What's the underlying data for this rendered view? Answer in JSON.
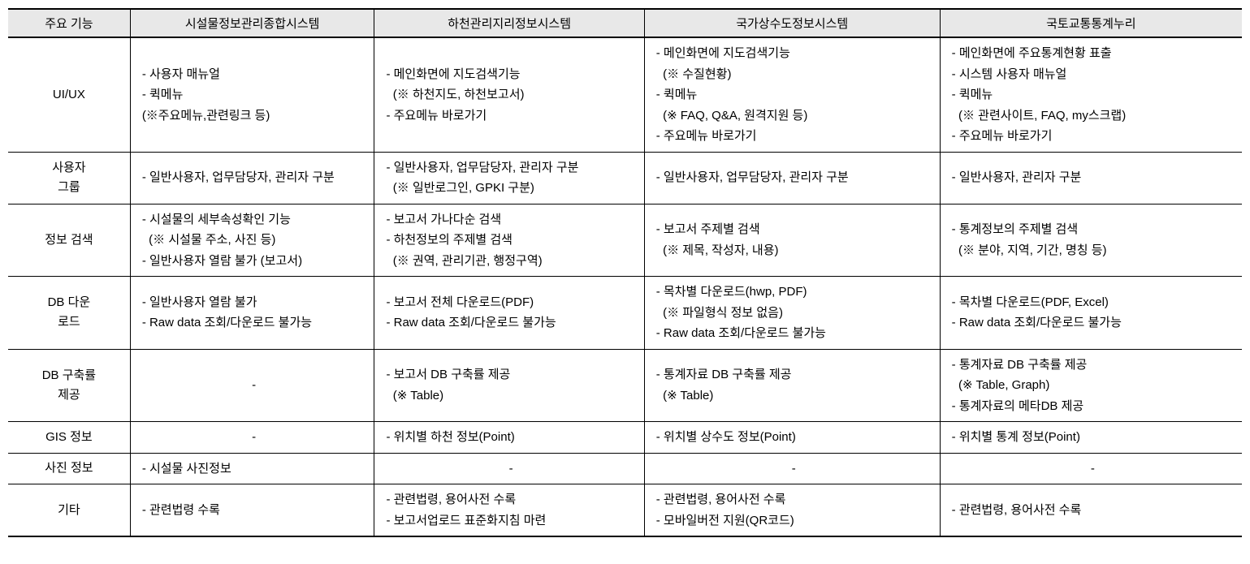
{
  "colors": {
    "header_bg": "#e8e8e8",
    "border": "#000000",
    "text": "#000000",
    "background": "#ffffff"
  },
  "typography": {
    "font_family": "Malgun Gothic",
    "font_size_pt": 11,
    "line_height": 1.7
  },
  "table": {
    "type": "table",
    "columns": [
      {
        "label": "주요 기능",
        "width_pct": 9.5,
        "align": "center"
      },
      {
        "label": "시설물정보관리종합시스템",
        "width_pct": 19,
        "align": "center"
      },
      {
        "label": "하천관리지리정보시스템",
        "width_pct": 21,
        "align": "center"
      },
      {
        "label": "국가상수도정보시스템",
        "width_pct": 23,
        "align": "center"
      },
      {
        "label": "국토교통통계누리",
        "width_pct": 23.5,
        "align": "center"
      }
    ],
    "rows": [
      {
        "head": "UI/UX",
        "cells": [
          {
            "lines": [
              "- 사용자 매뉴얼",
              "- 퀵메뉴",
              "(※주요메뉴,관련링크 등)"
            ]
          },
          {
            "lines": [
              "- 메인화면에 지도검색기능",
              "  (※ 하천지도, 하천보고서)",
              "- 주요메뉴 바로가기"
            ]
          },
          {
            "lines": [
              "- 메인화면에 지도검색기능",
              "  (※ 수질현황)",
              "- 퀵메뉴",
              "  (※ FAQ, Q&A, 원격지원 등)",
              "- 주요메뉴 바로가기"
            ]
          },
          {
            "lines": [
              "- 메인화면에 주요통계현황 표출",
              "- 시스템 사용자 매뉴얼",
              "- 퀵메뉴",
              "  (※ 관련사이트, FAQ, my스크랩)",
              "- 주요메뉴 바로가기"
            ]
          }
        ]
      },
      {
        "head": "사용자\n그룹",
        "cells": [
          {
            "lines": [
              "- 일반사용자, 업무담당자, 관리자 구분"
            ]
          },
          {
            "lines": [
              "- 일반사용자, 업무담당자, 관리자 구분",
              "  (※ 일반로그인, GPKI 구분)"
            ]
          },
          {
            "lines": [
              "- 일반사용자, 업무담당자, 관리자 구분"
            ]
          },
          {
            "lines": [
              "- 일반사용자, 관리자 구분"
            ]
          }
        ]
      },
      {
        "head": "정보 검색",
        "cells": [
          {
            "lines": [
              "- 시설물의 세부속성확인 기능",
              "  (※ 시설물 주소, 사진 등)",
              "- 일반사용자 열람 불가 (보고서)"
            ]
          },
          {
            "lines": [
              "- 보고서 가나다순 검색",
              "- 하천정보의 주제별 검색",
              "  (※ 권역, 관리기관, 행정구역)"
            ]
          },
          {
            "lines": [
              "- 보고서 주제별 검색",
              "  (※ 제목, 작성자, 내용)"
            ]
          },
          {
            "lines": [
              "- 통계정보의 주제별 검색",
              "  (※ 분야, 지역, 기간, 명칭 등)"
            ]
          }
        ]
      },
      {
        "head": "DB 다운\n로드",
        "cells": [
          {
            "lines": [
              "- 일반사용자 열람 불가",
              "- Raw data 조회/다운로드 불가능"
            ]
          },
          {
            "lines": [
              "- 보고서 전체 다운로드(PDF)",
              "- Raw data 조회/다운로드 불가능"
            ]
          },
          {
            "lines": [
              "- 목차별 다운로드(hwp, PDF)",
              "  (※ 파일형식 정보 없음)",
              "- Raw data 조회/다운로드 불가능"
            ]
          },
          {
            "lines": [
              "- 목차별 다운로드(PDF, Excel)",
              "- Raw data 조회/다운로드 불가능"
            ]
          }
        ]
      },
      {
        "head": "DB 구축률\n제공",
        "cells": [
          {
            "center": true,
            "lines": [
              "-"
            ]
          },
          {
            "lines": [
              "- 보고서 DB 구축률 제공",
              "  (※ Table)"
            ]
          },
          {
            "lines": [
              "- 통계자료 DB 구축률 제공",
              "  (※ Table)"
            ]
          },
          {
            "lines": [
              "- 통계자료 DB 구축률 제공",
              "  (※ Table, Graph)",
              "- 통계자료의 메타DB 제공"
            ]
          }
        ]
      },
      {
        "head": "GIS 정보",
        "cells": [
          {
            "center": true,
            "lines": [
              "-"
            ]
          },
          {
            "lines": [
              "- 위치별 하천 정보(Point)"
            ]
          },
          {
            "lines": [
              "- 위치별 상수도 정보(Point)"
            ]
          },
          {
            "lines": [
              "- 위치별 통계 정보(Point)"
            ]
          }
        ]
      },
      {
        "head": "사진 정보",
        "cells": [
          {
            "lines": [
              "- 시설물 사진정보"
            ]
          },
          {
            "center": true,
            "lines": [
              "-"
            ]
          },
          {
            "center": true,
            "lines": [
              "-"
            ]
          },
          {
            "center": true,
            "lines": [
              "-"
            ]
          }
        ]
      },
      {
        "head": "기타",
        "cells": [
          {
            "lines": [
              "- 관련법령 수록"
            ]
          },
          {
            "lines": [
              "- 관련법령, 용어사전 수록",
              "- 보고서업로드 표준화지침 마련"
            ]
          },
          {
            "lines": [
              "- 관련법령, 용어사전 수록",
              "- 모바일버전 지원(QR코드)"
            ]
          },
          {
            "lines": [
              "- 관련법령, 용어사전 수록"
            ]
          }
        ]
      }
    ]
  }
}
